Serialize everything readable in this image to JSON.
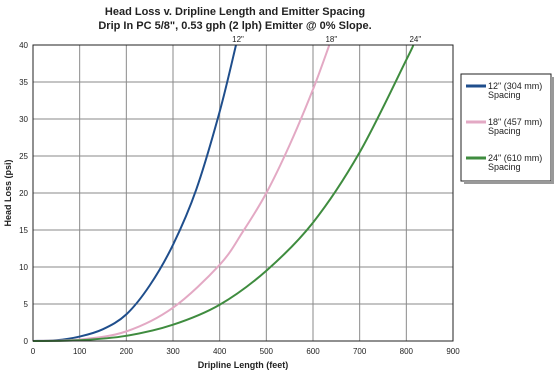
{
  "chart_data": {
    "type": "line",
    "title": "Head Loss v. Dripline Length and Emitter Spacing",
    "subtitle": "Drip In PC 5/8\", 0.53 gph (2 lph) Emitter @ 0% Slope.",
    "xlabel": "Dripline Length (feet)",
    "ylabel": "Head Loss (psi)",
    "xlim": [
      0,
      900
    ],
    "ylim": [
      0,
      40
    ],
    "xticks": [
      "0",
      "100",
      "200",
      "300",
      "400",
      "500",
      "600",
      "700",
      "800",
      "900"
    ],
    "yticks": [
      "0",
      "5",
      "10",
      "15",
      "20",
      "25",
      "30",
      "35",
      "40"
    ],
    "grid": true,
    "legend_position": "right",
    "series": [
      {
        "name": "12\" (304 mm) Spacing",
        "legend_line1": "12\" (304 mm)",
        "legend_line2": "Spacing",
        "end_label": "12\"",
        "color": "#1f4e8c",
        "x": [
          0,
          50,
          100,
          150,
          200,
          250,
          300,
          350,
          400,
          435
        ],
        "y": [
          0,
          0.1,
          0.6,
          1.6,
          3.6,
          7.5,
          13,
          20.5,
          31,
          40
        ]
      },
      {
        "name": "18\" (457 mm) Spacing",
        "legend_line1": "18\" (457 mm)",
        "legend_line2": "Spacing",
        "end_label": "18\"",
        "color": "#e3a9c4",
        "x": [
          0,
          100,
          200,
          300,
          400,
          450,
          500,
          550,
          600,
          635
        ],
        "y": [
          0,
          0.2,
          1.3,
          4.5,
          10.3,
          14.8,
          20,
          26.5,
          34,
          40
        ]
      },
      {
        "name": "24\" (610 mm) Spacing",
        "legend_line1": "24\" (610 mm)",
        "legend_line2": "Spacing",
        "end_label": "24\"",
        "color": "#3f8c3f",
        "x": [
          0,
          100,
          200,
          300,
          400,
          500,
          600,
          700,
          800,
          815
        ],
        "y": [
          0,
          0.1,
          0.7,
          2.2,
          4.9,
          9.5,
          16,
          25.5,
          38,
          40
        ]
      }
    ]
  }
}
